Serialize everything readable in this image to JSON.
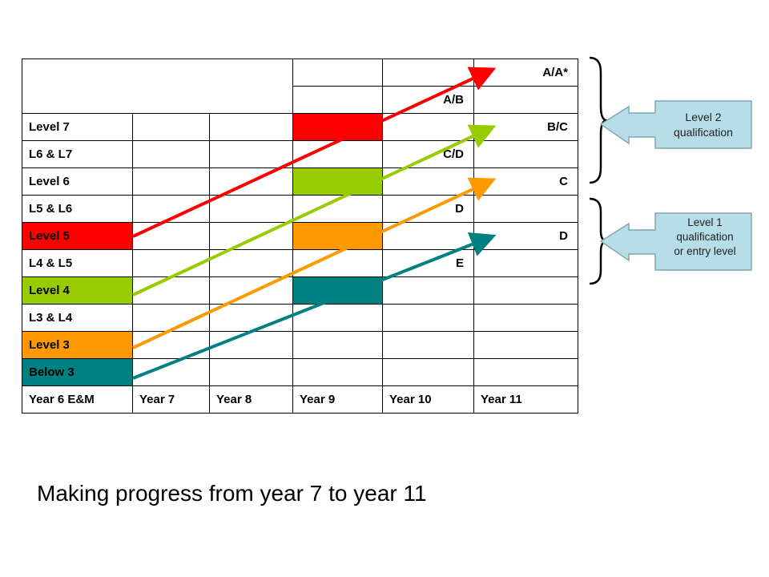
{
  "table": {
    "rows": [
      {
        "label": "",
        "cells": [
          "",
          "",
          "",
          "",
          "A/A*"
        ]
      },
      {
        "label": "",
        "cells": [
          "",
          "",
          "",
          "A/B",
          ""
        ]
      },
      {
        "label": "Level 7",
        "cells": [
          "",
          "",
          "",
          "",
          "B/C"
        ]
      },
      {
        "label": "L6 & L7",
        "cells": [
          "",
          "",
          "",
          "C/D",
          ""
        ]
      },
      {
        "label": "Level 6",
        "cells": [
          "",
          "",
          "",
          "",
          "C"
        ]
      },
      {
        "label": "L5 & L6",
        "cells": [
          "",
          "",
          "",
          "D",
          ""
        ]
      },
      {
        "label": "Level 5",
        "cells": [
          "",
          "",
          "",
          "",
          "D"
        ]
      },
      {
        "label": "L4 & L5",
        "cells": [
          "",
          "",
          "",
          "E",
          ""
        ]
      },
      {
        "label": "Level 4",
        "cells": [
          "",
          "",
          "",
          "",
          ""
        ]
      },
      {
        "label": "L3 & L4",
        "cells": [
          "",
          "",
          "",
          "",
          ""
        ]
      },
      {
        "label": "Level 3",
        "cells": [
          "",
          "",
          "",
          "",
          ""
        ]
      },
      {
        "label": "Below 3",
        "cells": [
          "",
          "",
          "",
          "",
          ""
        ]
      }
    ],
    "footer": [
      "Year 6 E&M",
      "Year 7",
      "Year 8",
      "Year 9",
      "Year 10",
      "Year 11"
    ]
  },
  "colors": {
    "red": "#ff0000",
    "green": "#99cc00",
    "orange": "#ff9900",
    "teal": "#008080",
    "callout_fill": "#b7dee8",
    "callout_border": "#7fa7b3"
  },
  "callouts": {
    "level2": [
      "Level 2",
      "qualification"
    ],
    "level1": [
      "Level 1",
      "qualification",
      "or entry level"
    ]
  },
  "caption": "Making progress from year 7 to year 11"
}
